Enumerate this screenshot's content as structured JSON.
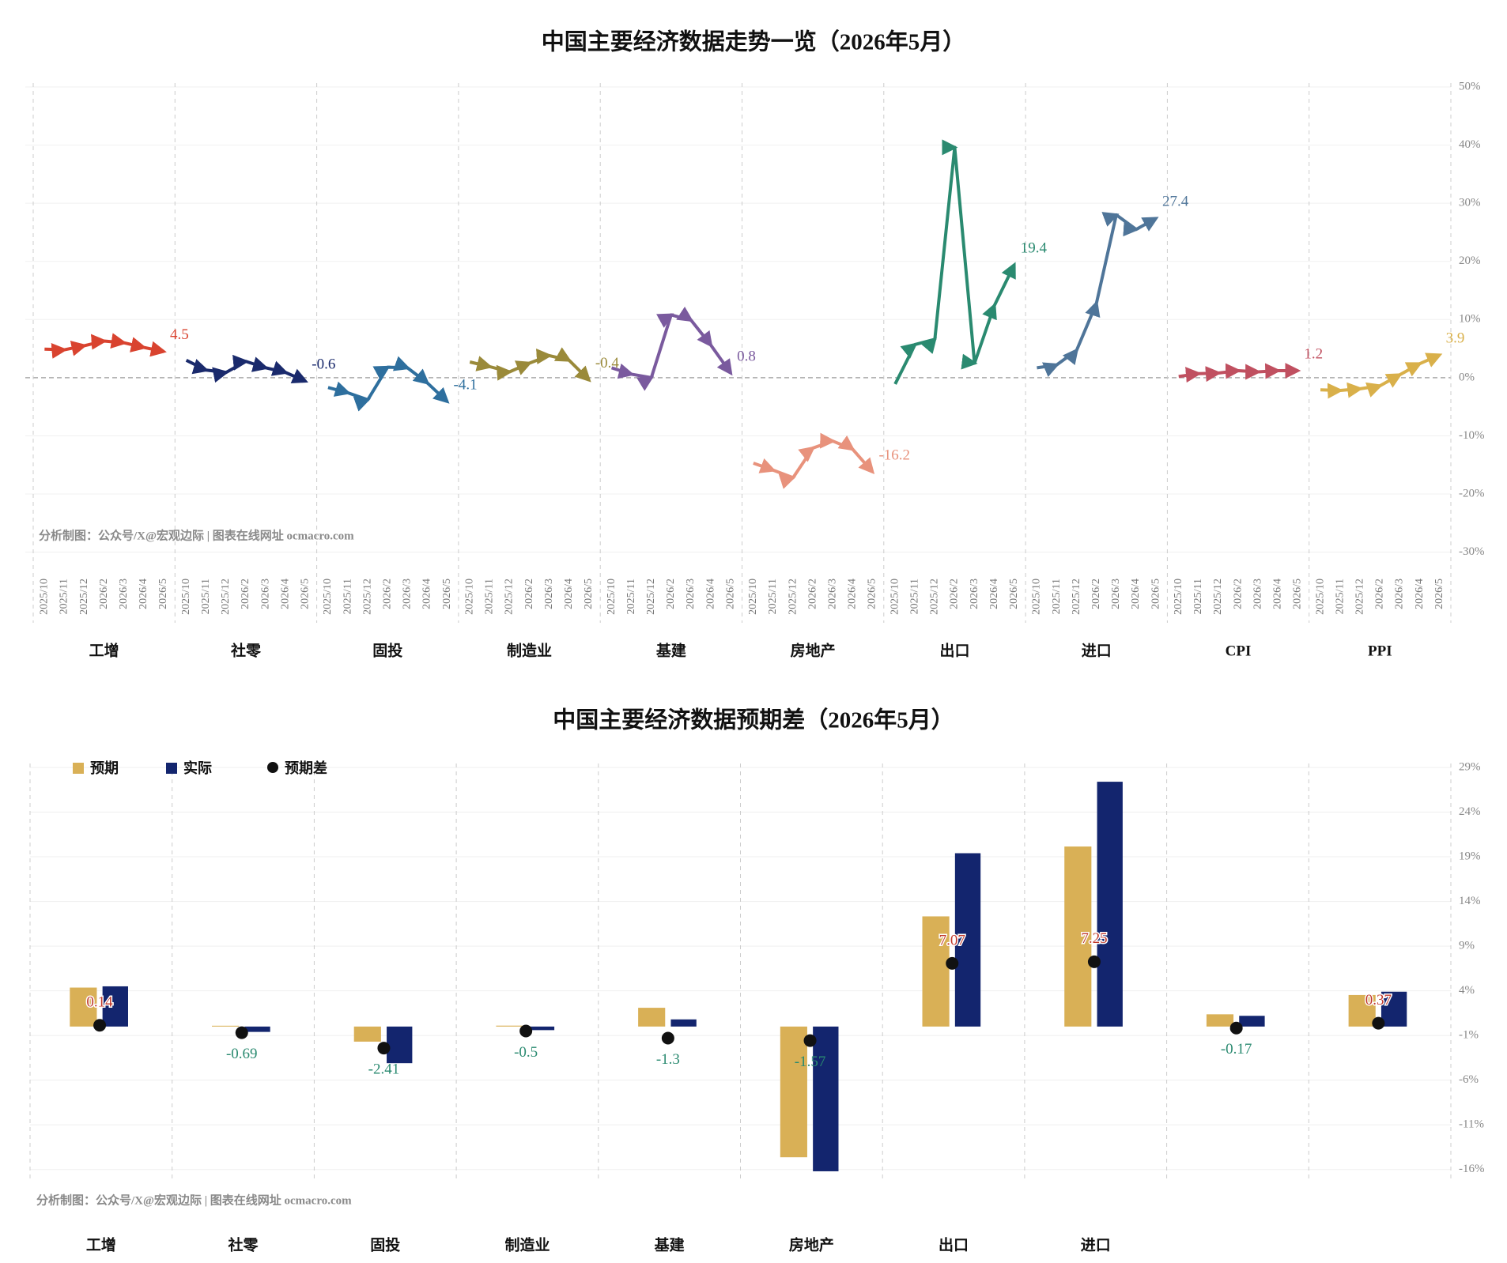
{
  "chart_data": [
    {
      "type": "line",
      "title": "中国主要经济数据走势一览（2026年5月）",
      "source": "分析制图：公众号/X@宏观边际 | 图表在线网址 ocmacro.com",
      "categories": [
        "2025/10",
        "2025/11",
        "2025/12",
        "2026/2",
        "2026/3",
        "2026/4",
        "2026/5"
      ],
      "series": [
        {
          "name": "工增",
          "color": "#d9432f",
          "values": [
            4.9,
            4.8,
            5.5,
            6.3,
            6.0,
            5.2,
            4.5
          ]
        },
        {
          "name": "社零",
          "color": "#1a2a6c",
          "values": [
            3.0,
            1.3,
            0.9,
            2.8,
            1.7,
            0.9,
            -0.6
          ]
        },
        {
          "name": "固投",
          "color": "#2e6f9e",
          "values": [
            -1.7,
            -2.6,
            -3.8,
            1.8,
            1.7,
            -0.9,
            -4.1
          ]
        },
        {
          "name": "制造业",
          "color": "#9a8a3a",
          "values": [
            2.7,
            1.9,
            1.0,
            2.5,
            3.8,
            3.0,
            -0.4
          ]
        },
        {
          "name": "基建",
          "color": "#7a5a9e",
          "values": [
            1.7,
            0.6,
            0.0,
            10.8,
            9.9,
            5.6,
            0.8
          ]
        },
        {
          "name": "房地产",
          "color": "#e8927c",
          "values": [
            -14.7,
            -15.9,
            -17.2,
            -12.1,
            -10.9,
            -12.3,
            -16.2
          ]
        },
        {
          "name": "出口",
          "color": "#2a8a70",
          "values": [
            -1.1,
            5.7,
            6.6,
            39.6,
            2.5,
            12.4,
            19.4
          ]
        },
        {
          "name": "进口",
          "color": "#4f7599",
          "values": [
            1.7,
            2.2,
            4.7,
            12.8,
            28.0,
            25.5,
            27.4
          ]
        },
        {
          "name": "CPI",
          "color": "#c05060",
          "values": [
            0.2,
            0.7,
            0.8,
            1.2,
            1.0,
            1.2,
            1.2
          ]
        },
        {
          "name": "PPI",
          "color": "#d9b04a",
          "values": [
            -2.1,
            -2.2,
            -1.9,
            -1.4,
            0.5,
            2.4,
            3.9
          ]
        }
      ],
      "ylim": [
        -34,
        50
      ],
      "yticks": [
        {
          "value": 50,
          "label": "50%"
        },
        {
          "value": 40,
          "label": "40%"
        },
        {
          "value": 30,
          "label": "30%"
        },
        {
          "value": 20,
          "label": "20%"
        },
        {
          "value": 10,
          "label": "10%"
        },
        {
          "value": 0,
          "label": "0%"
        },
        {
          "value": -10,
          "label": "-10%"
        },
        {
          "value": -20,
          "label": "-20%"
        },
        {
          "value": -30,
          "label": "-30%"
        }
      ],
      "grid": true
    },
    {
      "type": "bar",
      "title": "中国主要经济数据预期差（2026年5月）",
      "source": "分析制图：公众号/X@宏观边际 | 图表在线网址 ocmacro.com",
      "categories": [
        "工增",
        "社零",
        "固投",
        "制造业",
        "基建",
        "房地产",
        "出口",
        "进口",
        null,
        null
      ],
      "series": [
        {
          "name": "预期",
          "color": "#d9b056",
          "values": [
            4.36,
            0.09,
            -1.69,
            0.1,
            2.1,
            -14.63,
            12.33,
            20.15,
            1.37,
            3.53
          ]
        },
        {
          "name": "实际",
          "color": "#13256e",
          "values": [
            4.5,
            -0.6,
            -4.1,
            -0.4,
            0.8,
            -16.2,
            19.4,
            27.4,
            1.2,
            3.9
          ]
        },
        {
          "name": "预期差",
          "color": "#111111",
          "marker": "dot",
          "values": [
            0.14,
            -0.69,
            -2.41,
            -0.5,
            -1.3,
            -1.57,
            7.07,
            7.25,
            -0.17,
            0.37
          ]
        }
      ],
      "label_colors": {
        "positive": "#c0392b",
        "negative": "#2a8a70"
      },
      "ylim": [
        -17,
        29
      ],
      "yticks": [
        {
          "value": 29,
          "label": "29%"
        },
        {
          "value": 24,
          "label": "24%"
        },
        {
          "value": 19,
          "label": "19%"
        },
        {
          "value": 14,
          "label": "14%"
        },
        {
          "value": 9,
          "label": "9%"
        },
        {
          "value": 4,
          "label": "4%"
        },
        {
          "value": -1,
          "label": "-1%"
        },
        {
          "value": -6,
          "label": "-6%"
        },
        {
          "value": -11,
          "label": "-11%"
        },
        {
          "value": -16,
          "label": "-16%"
        }
      ],
      "legend": "upper left",
      "grid": true
    }
  ]
}
